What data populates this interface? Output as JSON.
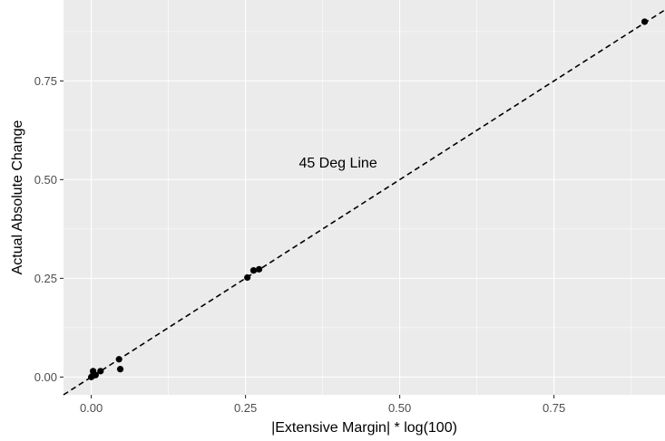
{
  "chart_data": {
    "type": "scatter",
    "title": "",
    "xlabel": "|Extensive Margin| * log(100)",
    "ylabel": "Actual Absolute Change",
    "xlim": [
      -0.045,
      0.93
    ],
    "ylim": [
      -0.045,
      0.955
    ],
    "x_ticks": [
      0.0,
      0.25,
      0.5,
      0.75
    ],
    "x_tick_labels": [
      "0.00",
      "0.25",
      "0.50",
      "0.75"
    ],
    "y_ticks": [
      0.0,
      0.25,
      0.5,
      0.75
    ],
    "y_tick_labels": [
      "0.00",
      "0.25",
      "0.50",
      "0.75"
    ],
    "grid": true,
    "background": "#ebebeb",
    "point_color": "#000000",
    "reference_line": {
      "slope": 1,
      "intercept": 0,
      "style": "dashed"
    },
    "annotation": {
      "text": "45 Deg Line",
      "x": 0.4,
      "y": 0.545
    },
    "points": [
      {
        "x": 0.0,
        "y": 0.0
      },
      {
        "x": 0.002,
        "y": 0.003
      },
      {
        "x": 0.003,
        "y": 0.015
      },
      {
        "x": 0.007,
        "y": 0.005
      },
      {
        "x": 0.015,
        "y": 0.015
      },
      {
        "x": 0.045,
        "y": 0.045
      },
      {
        "x": 0.047,
        "y": 0.02
      },
      {
        "x": 0.253,
        "y": 0.252
      },
      {
        "x": 0.263,
        "y": 0.27
      },
      {
        "x": 0.272,
        "y": 0.273
      },
      {
        "x": 0.897,
        "y": 0.9
      }
    ]
  }
}
